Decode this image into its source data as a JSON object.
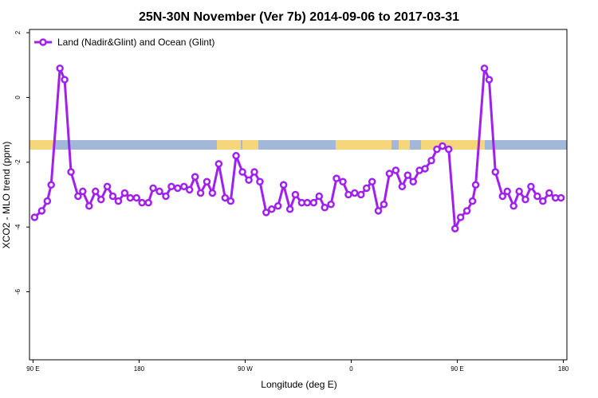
{
  "chart_data": {
    "type": "line",
    "title": "25N-30N November (Ver 7b)   2014-09-06 to 2017-03-31",
    "xlabel": "Longitude (deg E)",
    "ylabel": "XCO2 - MLO trend (ppm)",
    "xlim": [
      87,
      543
    ],
    "ylim": [
      -8.1,
      2.1
    ],
    "xticks": [
      {
        "value": 90,
        "label": "90 E"
      },
      {
        "value": 180,
        "label": "180"
      },
      {
        "value": 270,
        "label": "90 W"
      },
      {
        "value": 360,
        "label": "0"
      },
      {
        "value": 450,
        "label": "90 E"
      },
      {
        "value": 540,
        "label": "180"
      }
    ],
    "yticks": [
      2,
      0,
      -2,
      -4,
      -6
    ],
    "legend": "top-left",
    "series": [
      {
        "name": "Land (Nadir&Glint) and Ocean (Glint)",
        "color": "#a020f0",
        "x": [
          91.3,
          97.4,
          102.1,
          105.4,
          112.8,
          116.8,
          122.2,
          128.2,
          132.2,
          137.6,
          143,
          147.7,
          153,
          157.7,
          162.4,
          167.8,
          172.5,
          177.8,
          182.5,
          187.9,
          191.9,
          197.3,
          202.7,
          207.4,
          212.7,
          218.1,
          222.8,
          227.5,
          232.2,
          237.5,
          242.2,
          247.6,
          253,
          257.7,
          262.3,
          267.7,
          273.1,
          277.8,
          282.5,
          287.8,
          292.5,
          297.9,
          302.6,
          308,
          312.6,
          318,
          322.7,
          328.1,
          332.8,
          337.5,
          342.8,
          347.5,
          352.9,
          357.6,
          362.9,
          368.3,
          373,
          377.7,
          383,
          387.7,
          392.4,
          397.8,
          403.2,
          407.9,
          412.6,
          417.9,
          422.6,
          428,
          432.7,
          437.4,
          442.7,
          448.1,
          452.8,
          458.2,
          462.9,
          465.6,
          473,
          477,
          482.3,
          488.4,
          492.4,
          497.8,
          502.5,
          507.8,
          512.5,
          517.9,
          522.6,
          528,
          533.3,
          538
        ],
        "values": [
          -3.7,
          -3.5,
          -3.2,
          -2.7,
          0.9,
          0.55,
          -2.3,
          -3.05,
          -2.9,
          -3.35,
          -2.9,
          -3.15,
          -2.75,
          -3.05,
          -3.2,
          -2.95,
          -3.1,
          -3.1,
          -3.25,
          -3.25,
          -2.8,
          -2.9,
          -3.05,
          -2.75,
          -2.8,
          -2.75,
          -2.85,
          -2.45,
          -2.95,
          -2.6,
          -2.95,
          -2.05,
          -3.1,
          -3.2,
          -1.8,
          -2.3,
          -2.55,
          -2.3,
          -2.6,
          -3.55,
          -3.45,
          -3.35,
          -2.7,
          -3.45,
          -3,
          -3.25,
          -3.25,
          -3.25,
          -3.05,
          -3.4,
          -3.3,
          -2.5,
          -2.6,
          -3,
          -2.95,
          -3,
          -2.8,
          -2.6,
          -3.5,
          -3.3,
          -2.35,
          -2.25,
          -2.75,
          -2.4,
          -2.6,
          -2.25,
          -2.2,
          -1.95,
          -1.6,
          -1.5,
          -1.6,
          -4.05,
          -3.7,
          -3.5,
          -3.2,
          -2.7,
          0.9,
          0.55,
          -2.3,
          -3.05,
          -2.9,
          -3.35,
          -2.9,
          -3.15,
          -2.75,
          -3.05,
          -3.2,
          -2.95,
          -3.1,
          -3.1
        ]
      }
    ]
  }
}
